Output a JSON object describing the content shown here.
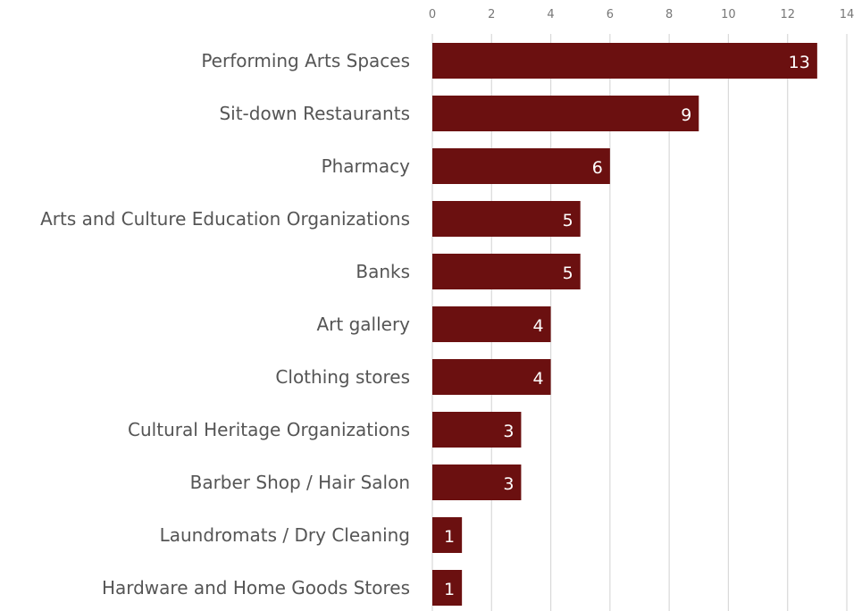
{
  "chart_data": {
    "type": "bar",
    "orientation": "horizontal",
    "categories": [
      "Performing Arts Spaces",
      "Sit-down Restaurants",
      "Pharmacy",
      "Arts and Culture Education Organizations",
      "Banks",
      "Art gallery",
      "Clothing stores",
      "Cultural Heritage Organizations",
      "Barber Shop / Hair Salon",
      "Laundromats / Dry Cleaning",
      "Hardware and Home Goods Stores"
    ],
    "values": [
      13,
      9,
      6,
      5,
      5,
      4,
      4,
      3,
      3,
      1,
      1
    ],
    "xlim": [
      0,
      14
    ],
    "x_ticks": [
      "0",
      "2",
      "4",
      "6",
      "8",
      "10",
      "12",
      "14"
    ],
    "tick_values": [
      0,
      2,
      4,
      6,
      8,
      10,
      12,
      14
    ],
    "x_axis_position": "top",
    "grid": true,
    "bar_color": "#6b1010",
    "grid_color": "#d9d9d9",
    "data_labels": true
  }
}
